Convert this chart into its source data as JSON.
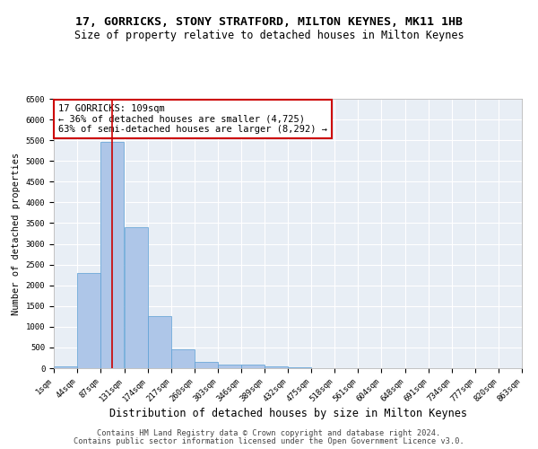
{
  "title1": "17, GORRICKS, STONY STRATFORD, MILTON KEYNES, MK11 1HB",
  "title2": "Size of property relative to detached houses in Milton Keynes",
  "xlabel": "Distribution of detached houses by size in Milton Keynes",
  "ylabel": "Number of detached properties",
  "footnote1": "Contains HM Land Registry data © Crown copyright and database right 2024.",
  "footnote2": "Contains public sector information licensed under the Open Government Licence v3.0.",
  "annotation_line1": "17 GORRICKS: 109sqm",
  "annotation_line2": "← 36% of detached houses are smaller (4,725)",
  "annotation_line3": "63% of semi-detached houses are larger (8,292) →",
  "bar_color": "#aec6e8",
  "bar_edge_color": "#5a9fd4",
  "background_color": "#e8eef5",
  "grid_color": "#ffffff",
  "red_line_color": "#cc0000",
  "annotation_box_color": "#cc0000",
  "bin_edges": [
    1,
    44,
    87,
    131,
    174,
    217,
    260,
    303,
    346,
    389,
    432,
    475,
    518,
    561,
    604,
    648,
    691,
    734,
    777,
    820,
    863
  ],
  "bar_heights": [
    50,
    2300,
    5450,
    3400,
    1250,
    450,
    150,
    80,
    80,
    50,
    30,
    0,
    0,
    0,
    0,
    0,
    0,
    0,
    0,
    0
  ],
  "red_line_x": 109,
  "ylim": [
    0,
    6500
  ],
  "xlim": [
    1,
    863
  ],
  "title1_fontsize": 9.5,
  "title2_fontsize": 8.5,
  "xlabel_fontsize": 8.5,
  "ylabel_fontsize": 7.5,
  "tick_fontsize": 6.5,
  "annotation_fontsize": 7.5,
  "footnote_fontsize": 6.2
}
